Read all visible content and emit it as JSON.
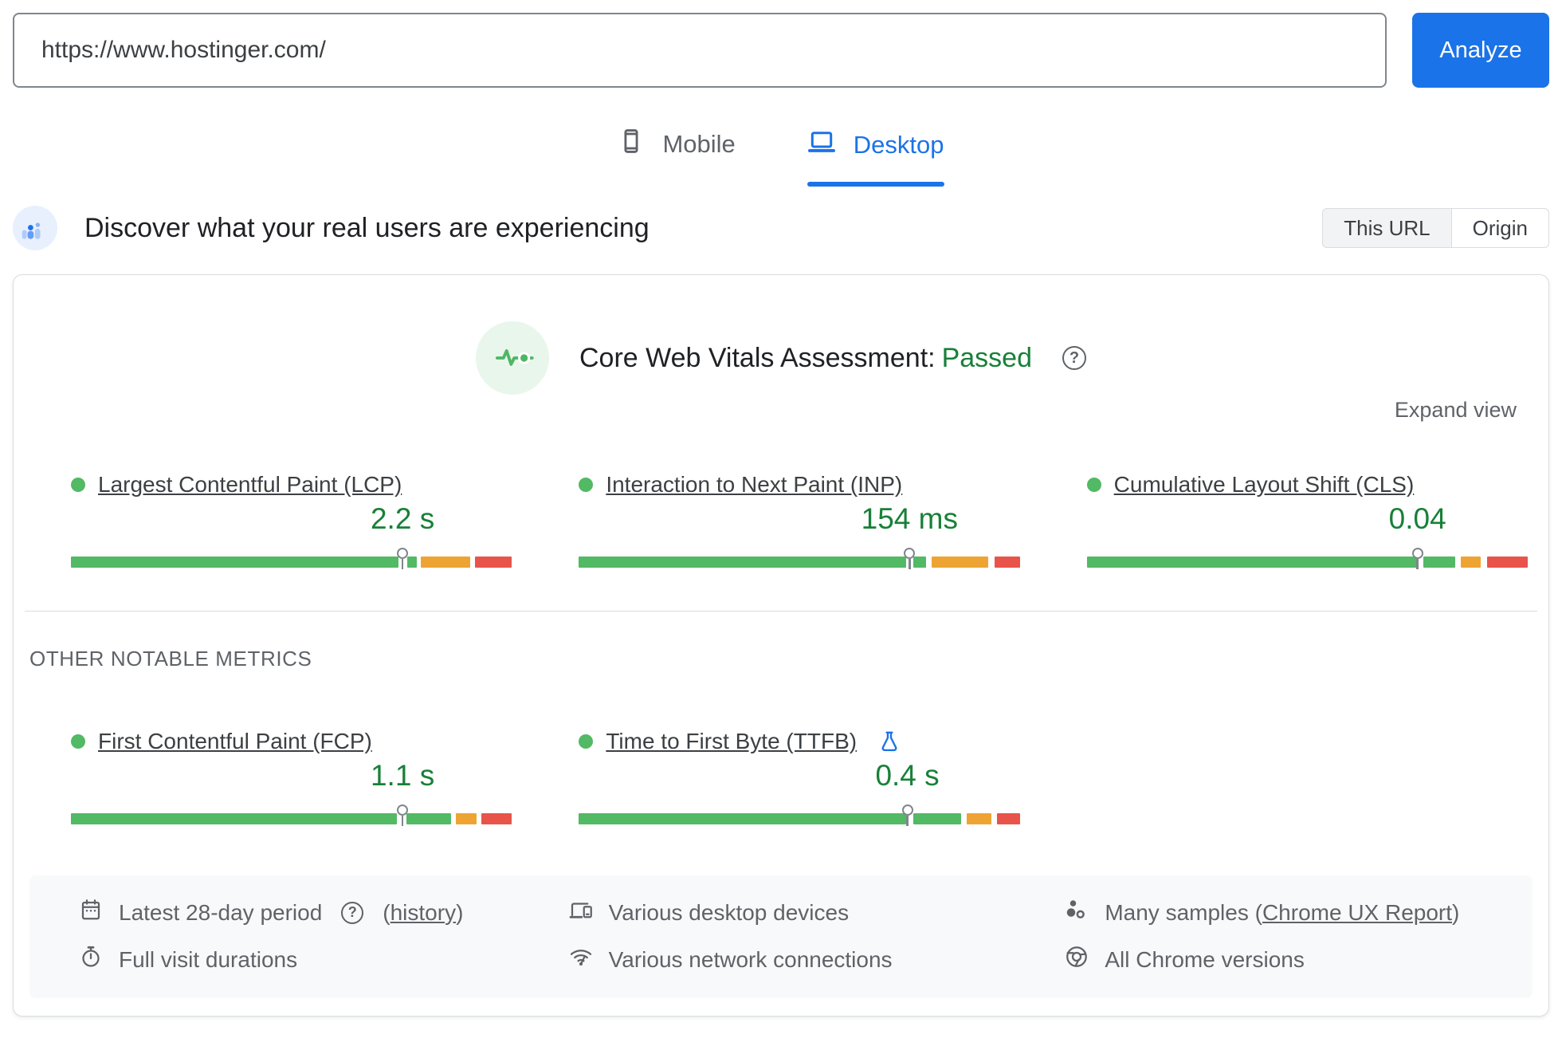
{
  "colors": {
    "good": "#52b964",
    "ni": "#eea432",
    "poor": "#e8544a",
    "value_green": "#188038",
    "accent_blue": "#1a73e8"
  },
  "url_bar": {
    "value": "https://www.hostinger.com/",
    "analyze_label": "Analyze"
  },
  "tabs": {
    "mobile": "Mobile",
    "desktop": "Desktop"
  },
  "field_header": {
    "title": "Discover what your real users are experiencing",
    "this_url_label": "This URL",
    "origin_label": "Origin"
  },
  "cwv": {
    "heading": "Core Web Vitals Assessment:",
    "status": "Passed",
    "expand_label": "Expand view"
  },
  "metrics": [
    {
      "name": "Largest Contentful Paint (LCP)",
      "value": "2.2 s",
      "marker_pct": 75.2,
      "segments": [
        {
          "color": "good",
          "from": 0,
          "to": 74.2
        },
        {
          "color": "good",
          "from": 76.2,
          "to": 78.4
        },
        {
          "color": "ni",
          "from": 79.4,
          "to": 90.6
        },
        {
          "color": "poor",
          "from": 91.6,
          "to": 100
        }
      ]
    },
    {
      "name": "Interaction to Next Paint (INP)",
      "value": "154 ms",
      "marker_pct": 75.0,
      "segments": [
        {
          "color": "good",
          "from": 0,
          "to": 74.3
        },
        {
          "color": "good",
          "from": 75.9,
          "to": 78.8
        },
        {
          "color": "ni",
          "from": 80.0,
          "to": 92.9
        },
        {
          "color": "poor",
          "from": 94.2,
          "to": 100
        }
      ]
    },
    {
      "name": "Cumulative Layout Shift (CLS)",
      "value": "0.04",
      "marker_pct": 75.0,
      "segments": [
        {
          "color": "good",
          "from": 0,
          "to": 74.9
        },
        {
          "color": "good",
          "from": 76.3,
          "to": 83.5
        },
        {
          "color": "ni",
          "from": 84.9,
          "to": 89.4
        },
        {
          "color": "poor",
          "from": 90.7,
          "to": 100
        }
      ]
    }
  ],
  "other_metrics_label": "OTHER NOTABLE METRICS",
  "other_metrics": [
    {
      "name": "First Contentful Paint (FCP)",
      "value": "1.1 s",
      "marker_pct": 75.2,
      "segments": [
        {
          "color": "good",
          "from": 0,
          "to": 74.0
        },
        {
          "color": "good",
          "from": 76.1,
          "to": 86.2
        },
        {
          "color": "ni",
          "from": 87.2,
          "to": 91.9
        },
        {
          "color": "poor",
          "from": 93.1,
          "to": 100
        }
      ]
    },
    {
      "name": "Time to First Byte (TTFB)",
      "value": "0.4 s",
      "marker_pct": 74.5,
      "segments": [
        {
          "color": "good",
          "from": 0,
          "to": 74.3
        },
        {
          "color": "good",
          "from": 75.9,
          "to": 86.7
        },
        {
          "color": "ni",
          "from": 87.9,
          "to": 93.6
        },
        {
          "color": "poor",
          "from": 94.8,
          "to": 100
        }
      ]
    }
  ],
  "footer": {
    "period": {
      "text": "Latest 28-day period",
      "link_pre": "(",
      "link": "history",
      "link_post": ")"
    },
    "durations": {
      "text": "Full visit durations"
    },
    "devices": {
      "text": "Various desktop devices"
    },
    "network": {
      "text": "Various network connections"
    },
    "samples": {
      "text_pre": "Many samples (",
      "link": "Chrome UX Report",
      "text_post": ")"
    },
    "versions": {
      "text": "All Chrome versions"
    }
  }
}
